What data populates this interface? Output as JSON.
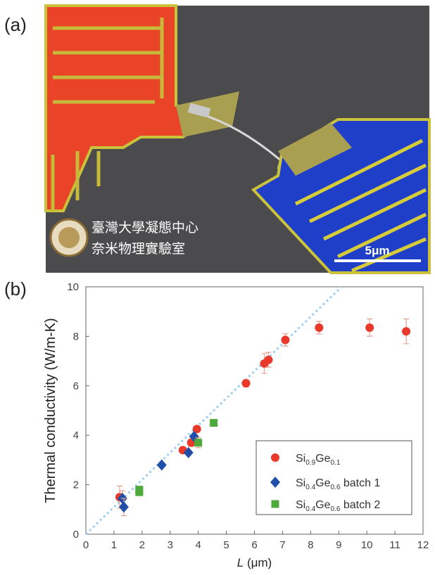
{
  "panel_a": {
    "label": "(a)",
    "logo_line_1": "臺灣大學凝態中心",
    "logo_line_2": "奈米物理實驗室",
    "scale_bar": "5μm"
  },
  "chart_data": {
    "type": "scatter",
    "panel_label": "(b)",
    "xlabel": [
      "L",
      " (μm)"
    ],
    "ylabel": "Thermal conductivity (W/m-K)",
    "xlim": [
      0,
      12
    ],
    "ylim": [
      0,
      10
    ],
    "xticks": [
      0,
      1,
      2,
      3,
      4,
      5,
      6,
      7,
      8,
      9,
      10,
      11,
      12
    ],
    "yticks": [
      0,
      2,
      4,
      6,
      8,
      10
    ],
    "fit_line": {
      "color": "#9fcff0",
      "x": [
        0,
        9.1
      ],
      "y": [
        0,
        10
      ]
    },
    "series": [
      {
        "name": [
          "Si",
          "0.9",
          "Ge",
          "0.1"
        ],
        "marker": "circle",
        "color": "#e8392a",
        "x": [
          1.2,
          3.45,
          3.75,
          3.95,
          5.7,
          6.35,
          6.5,
          7.1,
          8.3,
          10.1,
          11.4
        ],
        "values": [
          1.5,
          3.4,
          3.7,
          4.25,
          6.1,
          6.9,
          7.05,
          7.85,
          8.35,
          8.35,
          8.2
        ],
        "errors": [
          0.45,
          0.1,
          0.15,
          0.1,
          0.15,
          0.4,
          0.3,
          0.25,
          0.25,
          0.35,
          0.5
        ]
      },
      {
        "name": [
          "Si",
          "0.4",
          "Ge",
          "0.6",
          " batch 1"
        ],
        "marker": "diamond",
        "color": "#1f4fa8",
        "x": [
          1.3,
          1.35,
          2.7,
          3.65,
          3.85
        ],
        "values": [
          1.45,
          1.1,
          2.8,
          3.3,
          3.95
        ],
        "errors": [
          0.3,
          0.35,
          0.1,
          0.1,
          0.1
        ]
      },
      {
        "name": [
          "Si",
          "0.4",
          "Ge",
          "0.6",
          " batch 2"
        ],
        "marker": "square",
        "color": "#4fa83a",
        "x": [
          1.9,
          1.9,
          4.0,
          4.55
        ],
        "values": [
          1.7,
          1.8,
          3.7,
          4.5
        ],
        "errors": [
          0.1,
          0.1,
          0.2,
          0.1
        ]
      }
    ]
  }
}
